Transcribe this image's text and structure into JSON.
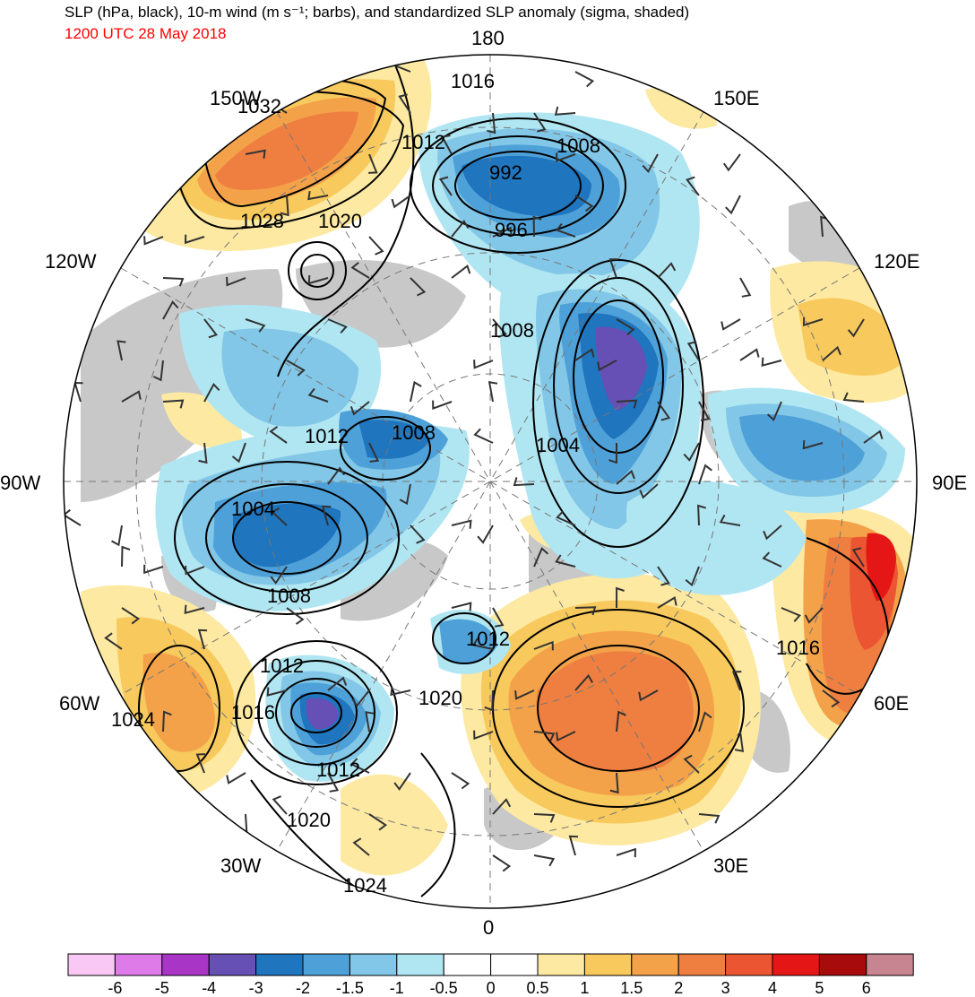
{
  "title": "SLP (hPa, black), 10-m wind (m s⁻¹; barbs), and standardized SLP anomaly (sigma, shaded)",
  "subtitle": "1200 UTC 28 May 2018",
  "longitude_labels": [
    "180",
    "150E",
    "120E",
    "90E",
    "60E",
    "30E",
    "0",
    "30W",
    "60W",
    "90W",
    "120W",
    "150W"
  ],
  "isobar_labels": [
    "1032",
    "1016",
    "1012",
    "1008",
    "992",
    "996",
    "1028",
    "1020",
    "1008",
    "1012",
    "1008",
    "1004",
    "1004",
    "1008",
    "1012",
    "1020",
    "1012",
    "1016",
    "1024",
    "1012",
    "1020",
    "1024",
    "1016"
  ],
  "colorbar": {
    "colors": [
      "#f9c8f5",
      "#de7be8",
      "#a935c7",
      "#6650b5",
      "#1f75be",
      "#4ea1d8",
      "#82c7e7",
      "#b0e6f2",
      "#ffffff",
      "#ffffff",
      "#fde9a1",
      "#f8c95c",
      "#f4a24a",
      "#ee7f40",
      "#eb5532",
      "#e51616",
      "#a80b0b",
      "#c78491"
    ],
    "tick_labels": [
      "-6",
      "-5",
      "-4",
      "-3",
      "-2",
      "-1.5",
      "-1",
      "-0.5",
      "0",
      "0.5",
      "1",
      "1.5",
      "2",
      "3",
      "4",
      "5",
      "6"
    ]
  },
  "anomaly_colors": {
    "neg_strong": "#1f75be",
    "neg_mid": "#4ea1d8",
    "neg_weak": "#82c7e7",
    "neg_faint": "#b0e6f2",
    "pos_faint": "#fde9a1",
    "pos_weak": "#f8c95c",
    "pos_mid": "#f4a24a",
    "pos_strong": "#ee7f40",
    "pos_vstrong": "#eb5532",
    "land_mask": "#c8c8c8",
    "purple": "#6650b5"
  }
}
